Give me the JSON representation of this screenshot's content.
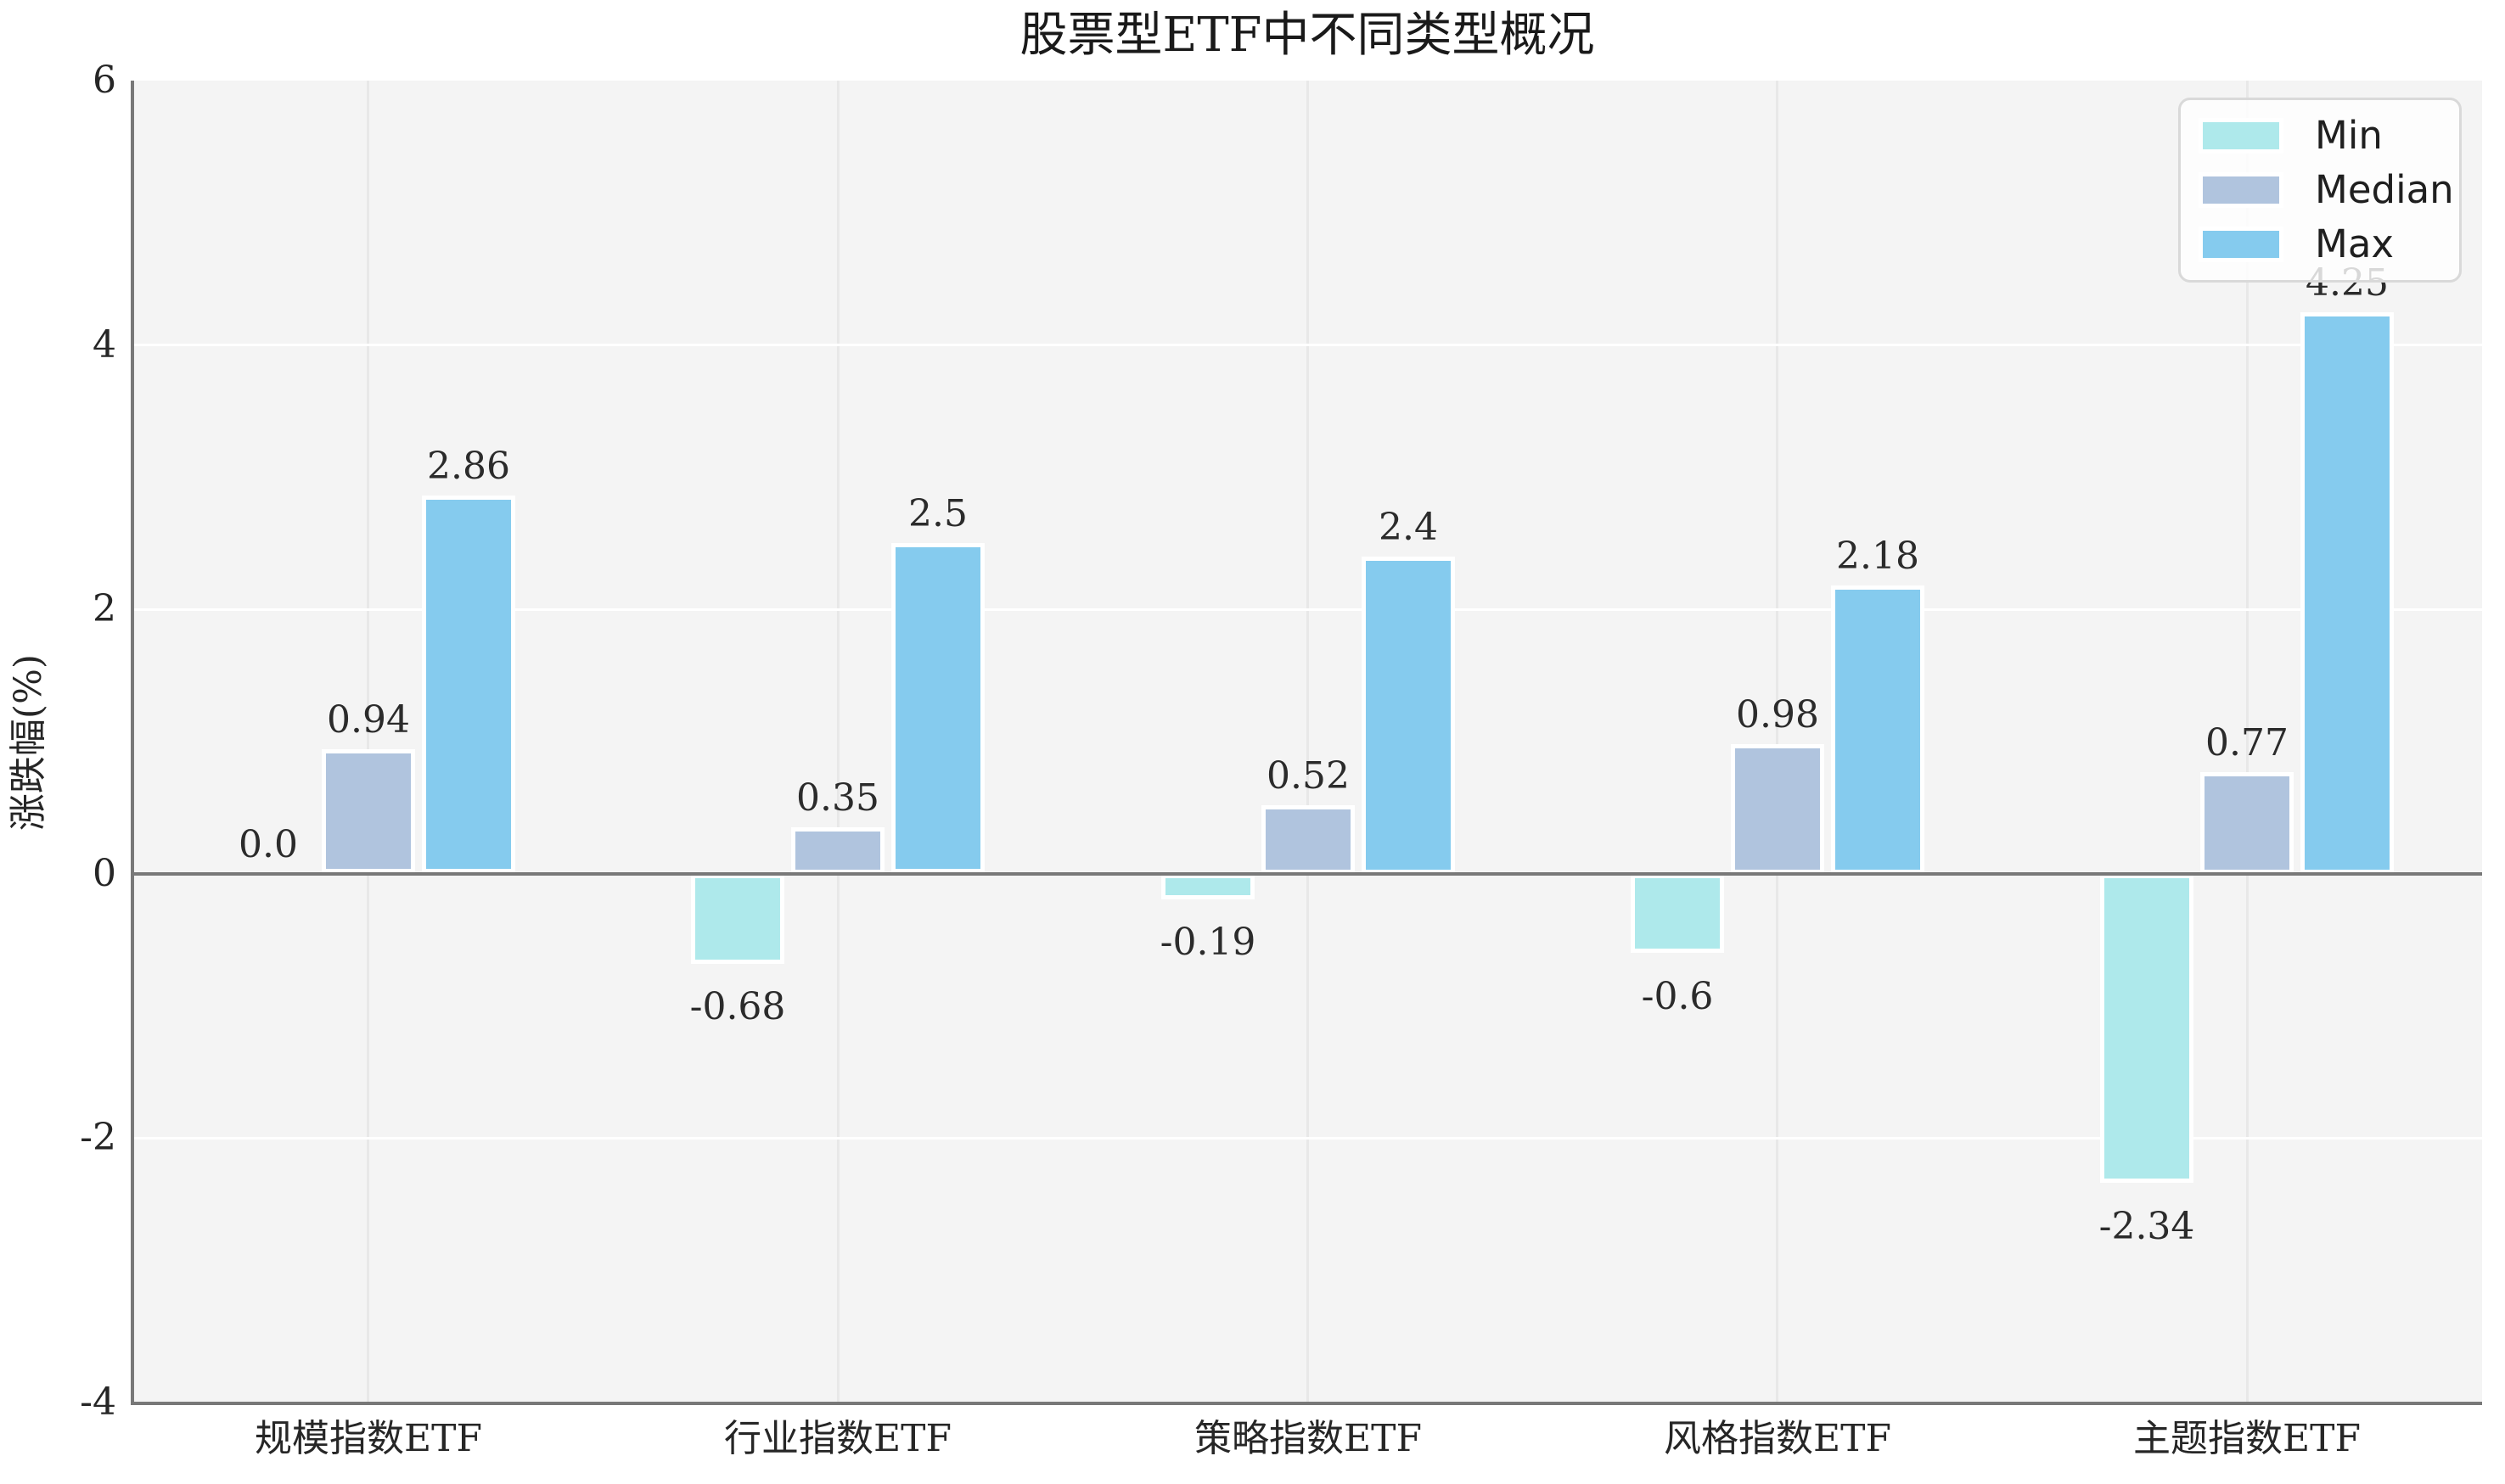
{
  "chart_data": {
    "type": "bar",
    "title": "股票型ETF中不同类型概况",
    "xlabel": "",
    "ylabel": "涨跌幅(%)",
    "categories": [
      "规模指数ETF",
      "行业指数ETF",
      "策略指数ETF",
      "风格指数ETF",
      "主题指数ETF"
    ],
    "series": [
      {
        "name": "Min",
        "color": "#aee9eb",
        "values": [
          0.0,
          -0.68,
          -0.19,
          -0.6,
          -2.34
        ],
        "labels": [
          "0.0",
          "-0.68",
          "-0.19",
          "-0.6",
          "-2.34"
        ]
      },
      {
        "name": "Median",
        "color": "#b0c4de",
        "values": [
          0.94,
          0.35,
          0.52,
          0.98,
          0.77
        ],
        "labels": [
          "0.94",
          "0.35",
          "0.52",
          "0.98",
          "0.77"
        ]
      },
      {
        "name": "Max",
        "color": "#85cbee",
        "values": [
          2.86,
          2.5,
          2.4,
          2.18,
          4.25
        ],
        "labels": [
          "2.86",
          "2.5",
          "2.4",
          "2.18",
          "4.25"
        ]
      }
    ],
    "ylim": [
      -4,
      6
    ],
    "yticks": [
      {
        "value": 6,
        "label": "6"
      },
      {
        "value": 4,
        "label": "4"
      },
      {
        "value": 2,
        "label": "2"
      },
      {
        "value": 0,
        "label": "0"
      },
      {
        "value": -2,
        "label": "-2"
      },
      {
        "value": -4,
        "label": "-4"
      }
    ],
    "grid": true,
    "legend_position": "upper-right",
    "colors": {
      "plot_background": "#f4f4f4",
      "figure_background": "#ffffff",
      "horizontal_grid": "#ffffff",
      "vertical_grid": "#e8e8e8",
      "axis_line": "#787878",
      "text": "#262626"
    }
  }
}
